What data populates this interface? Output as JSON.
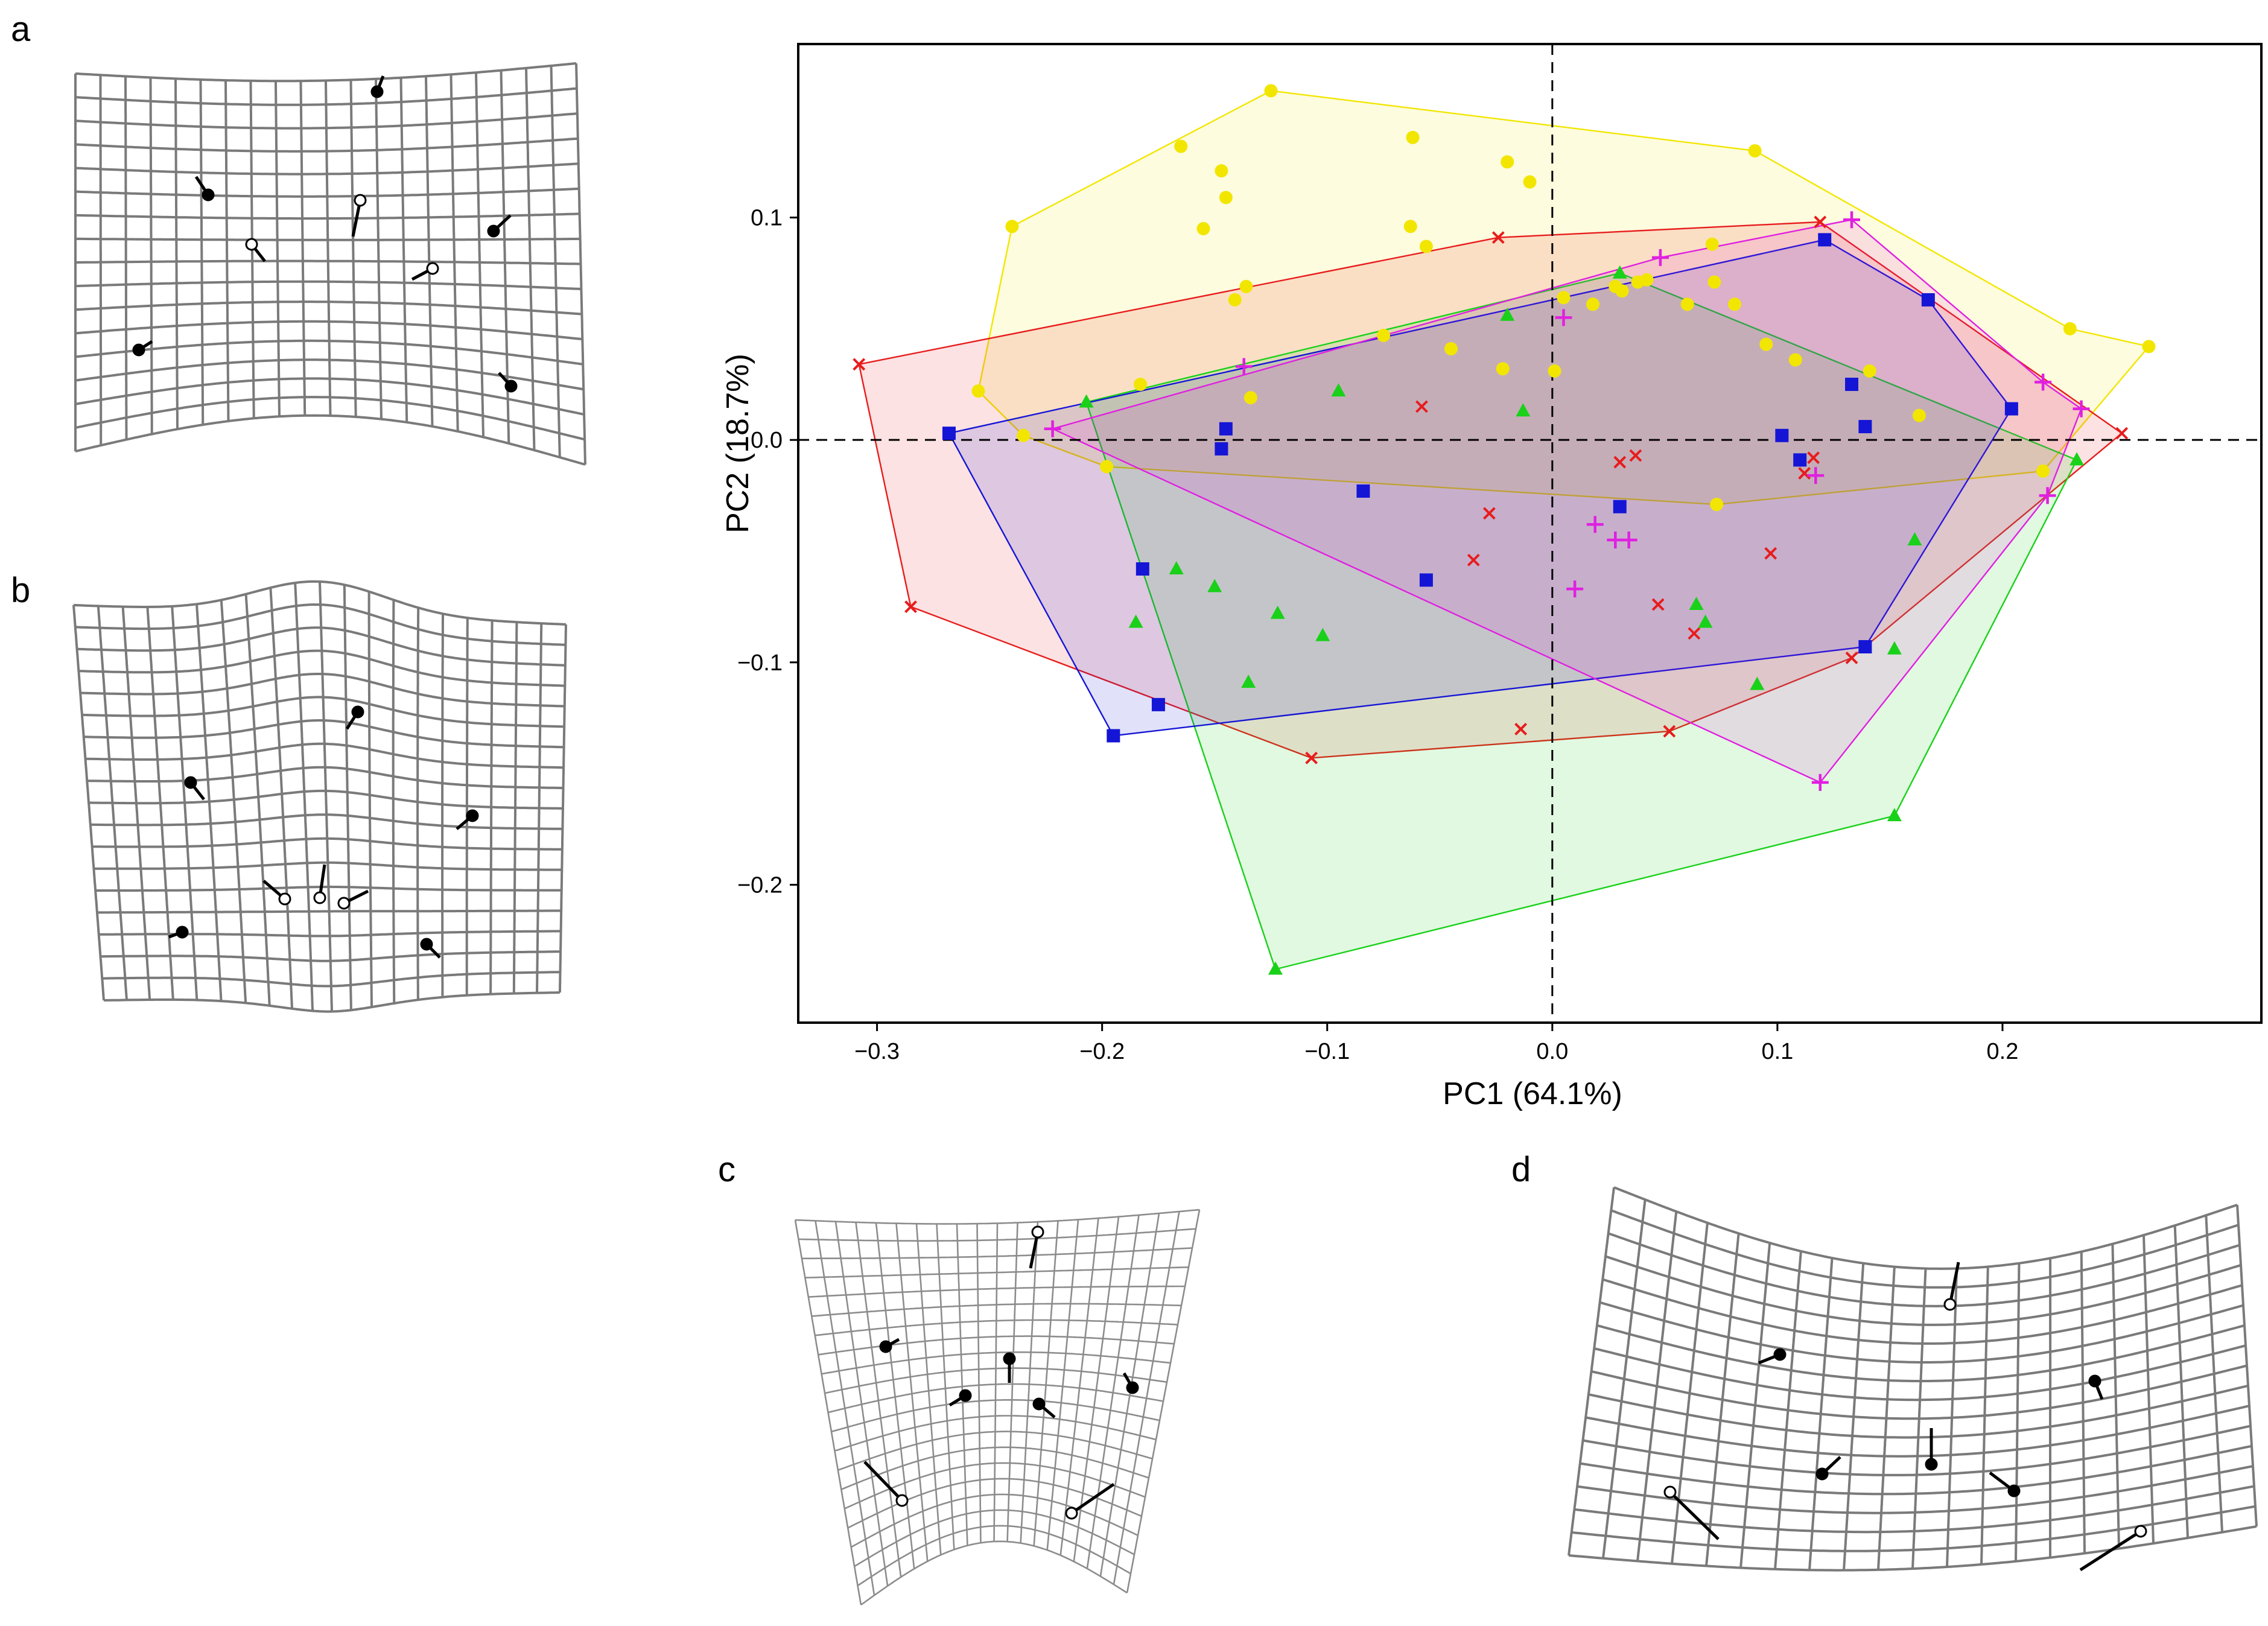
{
  "panels": {
    "a": "a",
    "b": "b",
    "c": "c",
    "d": "d"
  },
  "colors": {
    "yellow": "#f2e600",
    "red": "#e81c1c",
    "green": "#19d119",
    "blue": "#1515d6",
    "magenta": "#e020e0"
  },
  "chart_data": {
    "type": "scatter",
    "title": "",
    "xlabel": "PC1 (64.1%)",
    "ylabel": "PC2 (18.7%)",
    "xlim": [
      -0.335,
      0.315
    ],
    "ylim": [
      -0.262,
      0.178
    ],
    "x_ticks": [
      -0.3,
      -0.2,
      -0.1,
      0.0,
      0.1,
      0.2
    ],
    "x_tick_labels": [
      "−0.3",
      "−0.2",
      "−0.1",
      "0.0",
      "0.1",
      "0.2"
    ],
    "y_ticks": [
      -0.2,
      -0.1,
      0.0,
      0.1
    ],
    "y_tick_labels": [
      "−0.2",
      "−0.1",
      "0.0",
      "0.1"
    ],
    "grid": false,
    "reference_lines": {
      "x": 0.0,
      "y": 0.0,
      "style": "dashed"
    },
    "series": [
      {
        "name": "yellow-circles",
        "marker": "circle",
        "color": "#f2e600",
        "points": [
          [
            -0.125,
            0.157
          ],
          [
            -0.165,
            0.132
          ],
          [
            -0.147,
            0.121
          ],
          [
            -0.145,
            0.109
          ],
          [
            -0.062,
            0.136
          ],
          [
            -0.02,
            0.125
          ],
          [
            -0.01,
            0.116
          ],
          [
            -0.24,
            0.096
          ],
          [
            -0.155,
            0.095
          ],
          [
            -0.063,
            0.096
          ],
          [
            -0.056,
            0.087
          ],
          [
            -0.136,
            0.069
          ],
          [
            -0.141,
            0.063
          ],
          [
            0.09,
            0.13
          ],
          [
            0.005,
            0.064
          ],
          [
            0.018,
            0.061
          ],
          [
            0.028,
            0.069
          ],
          [
            0.031,
            0.067
          ],
          [
            0.038,
            0.071
          ],
          [
            0.042,
            0.072
          ],
          [
            0.06,
            0.061
          ],
          [
            0.071,
            0.088
          ],
          [
            0.072,
            0.071
          ],
          [
            0.081,
            0.061
          ],
          [
            -0.075,
            0.047
          ],
          [
            -0.045,
            0.041
          ],
          [
            -0.022,
            0.032
          ],
          [
            0.001,
            0.031
          ],
          [
            0.095,
            0.043
          ],
          [
            0.108,
            0.036
          ],
          [
            0.141,
            0.031
          ],
          [
            -0.255,
            0.022
          ],
          [
            -0.183,
            0.025
          ],
          [
            -0.134,
            0.019
          ],
          [
            -0.235,
            0.002
          ],
          [
            -0.198,
            -0.012
          ],
          [
            0.163,
            0.011
          ],
          [
            0.23,
            0.05
          ],
          [
            0.265,
            0.042
          ],
          [
            0.073,
            -0.029
          ],
          [
            0.218,
            -0.014
          ]
        ],
        "hull": [
          [
            -0.125,
            0.157
          ],
          [
            0.09,
            0.13
          ],
          [
            0.23,
            0.05
          ],
          [
            0.265,
            0.042
          ],
          [
            0.218,
            -0.014
          ],
          [
            0.073,
            -0.029
          ],
          [
            -0.198,
            -0.012
          ],
          [
            -0.235,
            0.002
          ],
          [
            -0.255,
            0.022
          ],
          [
            -0.24,
            0.096
          ]
        ]
      },
      {
        "name": "red-crosses",
        "marker": "x",
        "color": "#e81c1c",
        "points": [
          [
            -0.308,
            0.034
          ],
          [
            -0.285,
            -0.075
          ],
          [
            -0.024,
            0.091
          ],
          [
            0.119,
            0.098
          ],
          [
            0.253,
            0.003
          ],
          [
            -0.058,
            0.015
          ],
          [
            0.03,
            -0.01
          ],
          [
            0.037,
            -0.007
          ],
          [
            -0.028,
            -0.033
          ],
          [
            -0.035,
            -0.054
          ],
          [
            0.116,
            -0.008
          ],
          [
            0.112,
            -0.015
          ],
          [
            0.097,
            -0.051
          ],
          [
            0.047,
            -0.074
          ],
          [
            0.063,
            -0.087
          ],
          [
            0.133,
            -0.098
          ],
          [
            -0.107,
            -0.143
          ],
          [
            -0.014,
            -0.13
          ],
          [
            0.052,
            -0.131
          ]
        ],
        "hull": [
          [
            -0.308,
            0.034
          ],
          [
            -0.024,
            0.091
          ],
          [
            0.119,
            0.098
          ],
          [
            0.253,
            0.003
          ],
          [
            0.133,
            -0.098
          ],
          [
            0.052,
            -0.131
          ],
          [
            -0.107,
            -0.143
          ],
          [
            -0.285,
            -0.075
          ]
        ]
      },
      {
        "name": "green-triangles",
        "marker": "triangle",
        "color": "#19d119",
        "points": [
          [
            -0.207,
            0.017
          ],
          [
            0.03,
            0.075
          ],
          [
            -0.02,
            0.056
          ],
          [
            -0.095,
            0.022
          ],
          [
            -0.013,
            0.013
          ],
          [
            -0.167,
            -0.058
          ],
          [
            -0.15,
            -0.066
          ],
          [
            -0.185,
            -0.082
          ],
          [
            -0.122,
            -0.078
          ],
          [
            -0.102,
            -0.088
          ],
          [
            -0.135,
            -0.109
          ],
          [
            0.064,
            -0.074
          ],
          [
            0.068,
            -0.082
          ],
          [
            0.152,
            -0.094
          ],
          [
            0.091,
            -0.11
          ],
          [
            0.161,
            -0.045
          ],
          [
            0.233,
            -0.009
          ],
          [
            0.152,
            -0.169
          ],
          [
            -0.123,
            -0.238
          ]
        ],
        "hull": [
          [
            -0.207,
            0.017
          ],
          [
            0.03,
            0.075
          ],
          [
            0.233,
            -0.009
          ],
          [
            0.152,
            -0.169
          ],
          [
            -0.123,
            -0.238
          ]
        ]
      },
      {
        "name": "blue-squares",
        "marker": "square",
        "color": "#1515d6",
        "points": [
          [
            -0.268,
            0.003
          ],
          [
            -0.145,
            0.005
          ],
          [
            -0.147,
            -0.004
          ],
          [
            0.121,
            0.09
          ],
          [
            0.167,
            0.063
          ],
          [
            0.133,
            0.025
          ],
          [
            0.139,
            0.006
          ],
          [
            0.204,
            0.014
          ],
          [
            0.102,
            0.002
          ],
          [
            0.11,
            -0.009
          ],
          [
            -0.084,
            -0.023
          ],
          [
            0.03,
            -0.03
          ],
          [
            -0.182,
            -0.058
          ],
          [
            -0.056,
            -0.063
          ],
          [
            0.139,
            -0.093
          ],
          [
            -0.175,
            -0.119
          ],
          [
            -0.195,
            -0.133
          ]
        ],
        "hull": [
          [
            -0.268,
            0.003
          ],
          [
            0.121,
            0.09
          ],
          [
            0.167,
            0.063
          ],
          [
            0.204,
            0.014
          ],
          [
            0.139,
            -0.093
          ],
          [
            -0.195,
            -0.133
          ]
        ]
      },
      {
        "name": "magenta-plus",
        "marker": "plus",
        "color": "#e020e0",
        "points": [
          [
            0.133,
            0.099
          ],
          [
            0.048,
            0.082
          ],
          [
            -0.137,
            0.033
          ],
          [
            0.005,
            0.055
          ],
          [
            -0.222,
            0.005
          ],
          [
            0.218,
            0.026
          ],
          [
            0.235,
            0.014
          ],
          [
            0.22,
            -0.025
          ],
          [
            0.117,
            -0.016
          ],
          [
            0.019,
            -0.038
          ],
          [
            0.028,
            -0.045
          ],
          [
            0.034,
            -0.045
          ],
          [
            0.01,
            -0.067
          ],
          [
            0.119,
            -0.154
          ]
        ],
        "hull": [
          [
            -0.222,
            0.005
          ],
          [
            0.048,
            0.082
          ],
          [
            0.133,
            0.099
          ],
          [
            0.218,
            0.026
          ],
          [
            0.235,
            0.014
          ],
          [
            0.22,
            -0.025
          ],
          [
            0.119,
            -0.154
          ]
        ]
      }
    ]
  }
}
